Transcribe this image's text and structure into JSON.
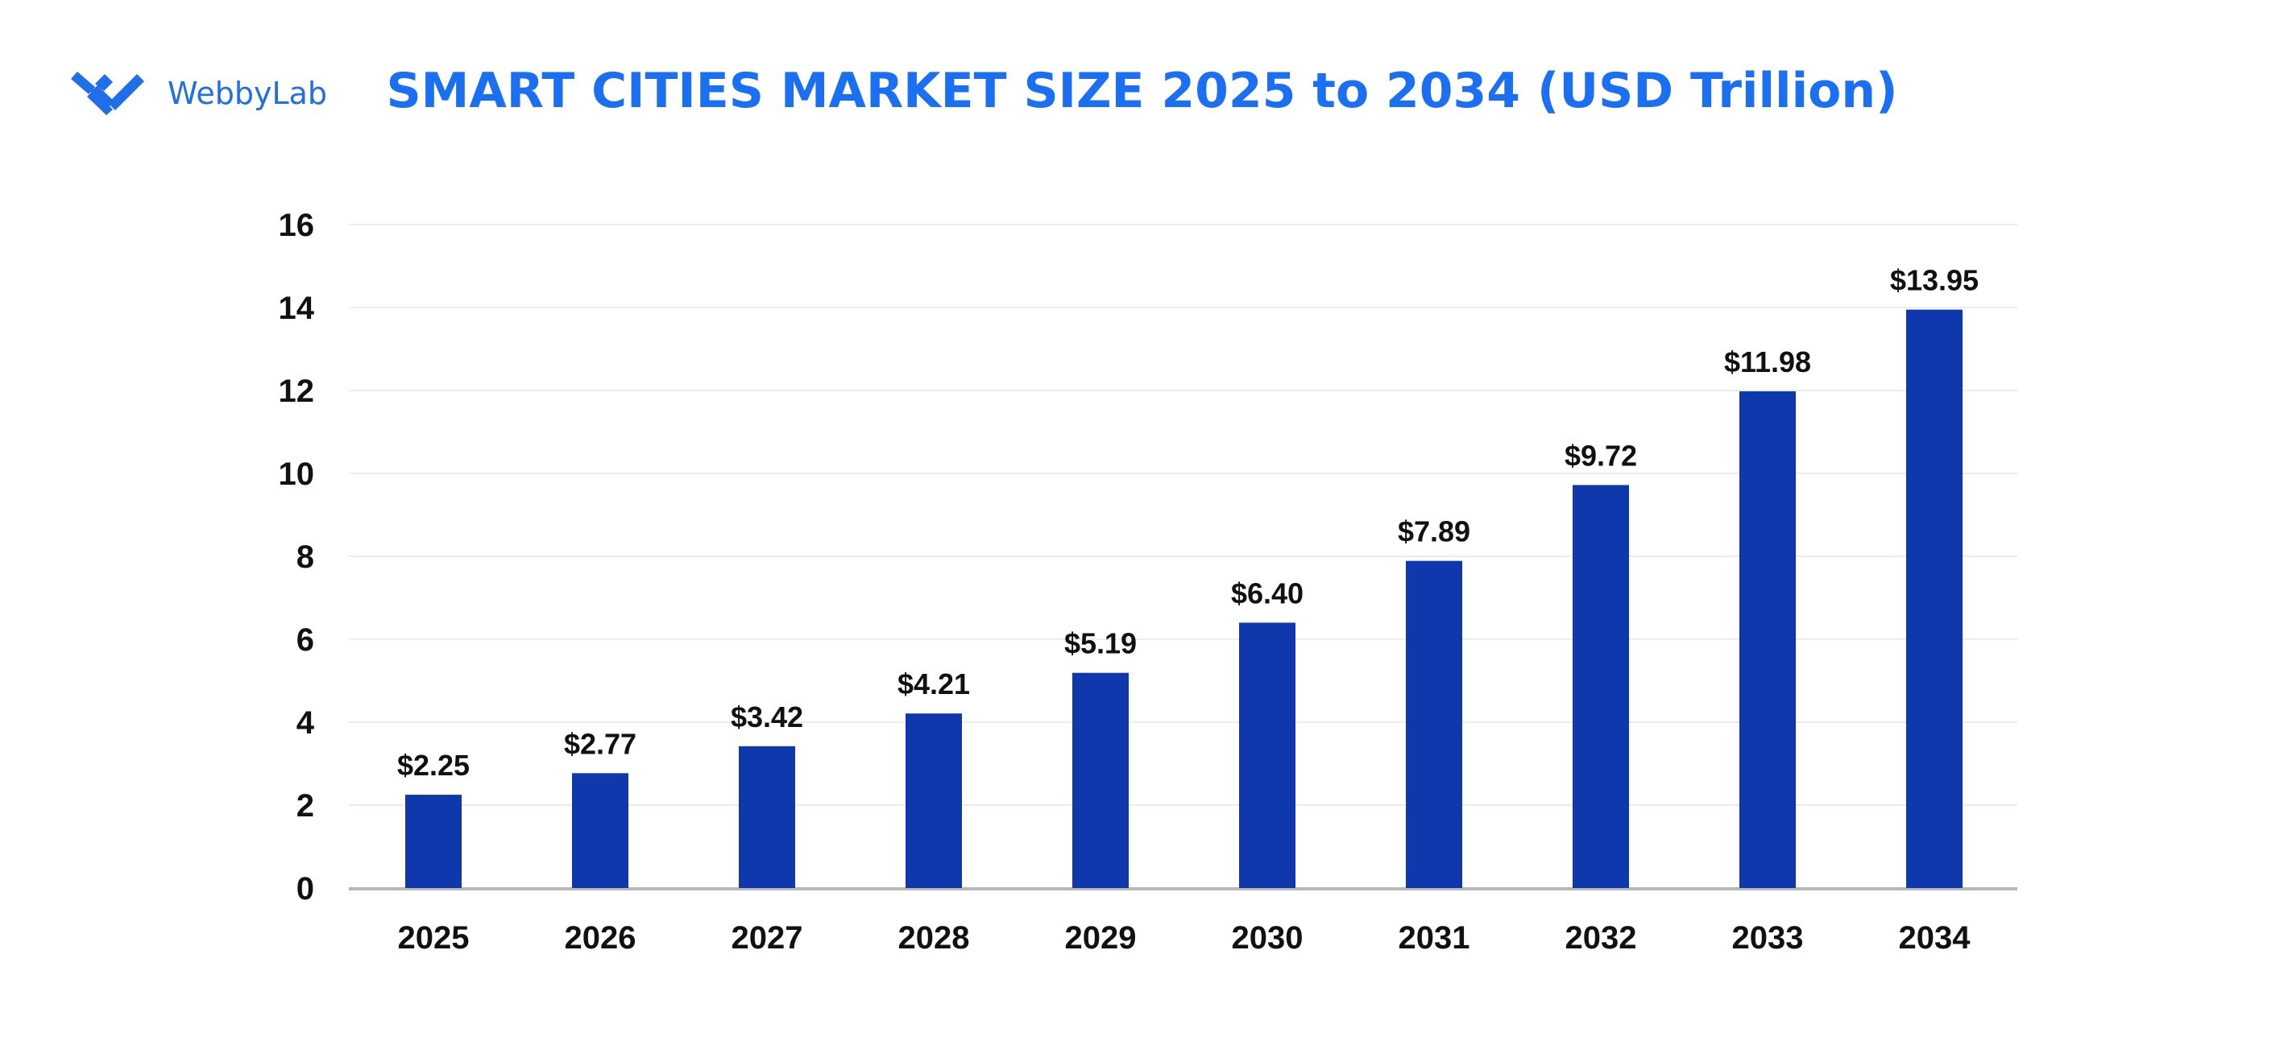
{
  "brand": {
    "name": "WebbyLab",
    "color": "#1f6fe8"
  },
  "chart_data": {
    "type": "bar",
    "title": "SMART CITIES MARKET SIZE 2025 to 2034 (USD Trillion)",
    "categories": [
      "2025",
      "2026",
      "2027",
      "2028",
      "2029",
      "2030",
      "2031",
      "2032",
      "2033",
      "2034"
    ],
    "values": [
      2.25,
      2.77,
      3.42,
      4.21,
      5.19,
      6.4,
      7.89,
      9.72,
      11.98,
      13.95
    ],
    "data_labels": [
      "$2.25",
      "$2.77",
      "$3.42",
      "$4.21",
      "$5.19",
      "$6.40",
      "$7.89",
      "$9.72",
      "$11.98",
      "$13.95"
    ],
    "xlabel": "",
    "ylabel": "",
    "ylim": [
      0,
      16
    ],
    "yticks": [
      0,
      2,
      4,
      6,
      8,
      10,
      12,
      14,
      16
    ],
    "grid": true,
    "legend": "none",
    "bar_color": "#0f38ad",
    "title_color": "#1b6ff2"
  }
}
